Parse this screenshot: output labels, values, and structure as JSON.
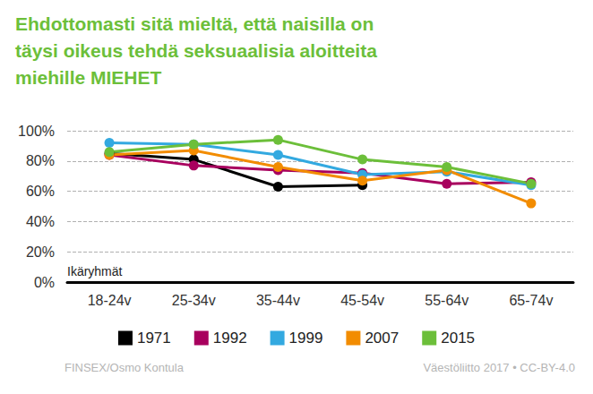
{
  "chart_data": {
    "type": "line",
    "title": "Ehdottomasti sitä mieltä, että naisilla on\ntäysi oikeus tehdä seksuaalisia aloitteita\nmiehille MIEHET",
    "xlabel": "Ikäryhmät",
    "notes": [
      "FINSEX/Osmo Kontula",
      "Väestöliitto 2017 • CC-BY-4.0"
    ],
    "categories": [
      "18-24v",
      "25-34v",
      "35-44v",
      "45-54v",
      "55-64v",
      "65-74v"
    ],
    "series": [
      {
        "name": "1971",
        "color": "#000000",
        "values": [
          85,
          81,
          63,
          64,
          null,
          null
        ]
      },
      {
        "name": "1992",
        "color": "#a8005e",
        "values": [
          84,
          77,
          74,
          72,
          65,
          66
        ]
      },
      {
        "name": "1999",
        "color": "#33a9e0",
        "values": [
          92,
          91,
          84,
          71,
          73,
          64
        ]
      },
      {
        "name": "2007",
        "color": "#f28c00",
        "values": [
          84,
          87,
          76,
          67,
          74,
          52
        ]
      },
      {
        "name": "2015",
        "color": "#6cbf3a",
        "values": [
          86,
          91,
          94,
          81,
          76,
          65
        ]
      }
    ],
    "ylim": [
      0,
      100
    ],
    "yticks": [
      {
        "value": 0,
        "label": "0%"
      },
      {
        "value": 20,
        "label": "20%"
      },
      {
        "value": 40,
        "label": "40%"
      },
      {
        "value": 60,
        "label": "60%"
      },
      {
        "value": 80,
        "label": "80%"
      },
      {
        "value": 100,
        "label": "100%"
      }
    ],
    "grid": true,
    "legend": "bottom",
    "marker": "circle"
  }
}
